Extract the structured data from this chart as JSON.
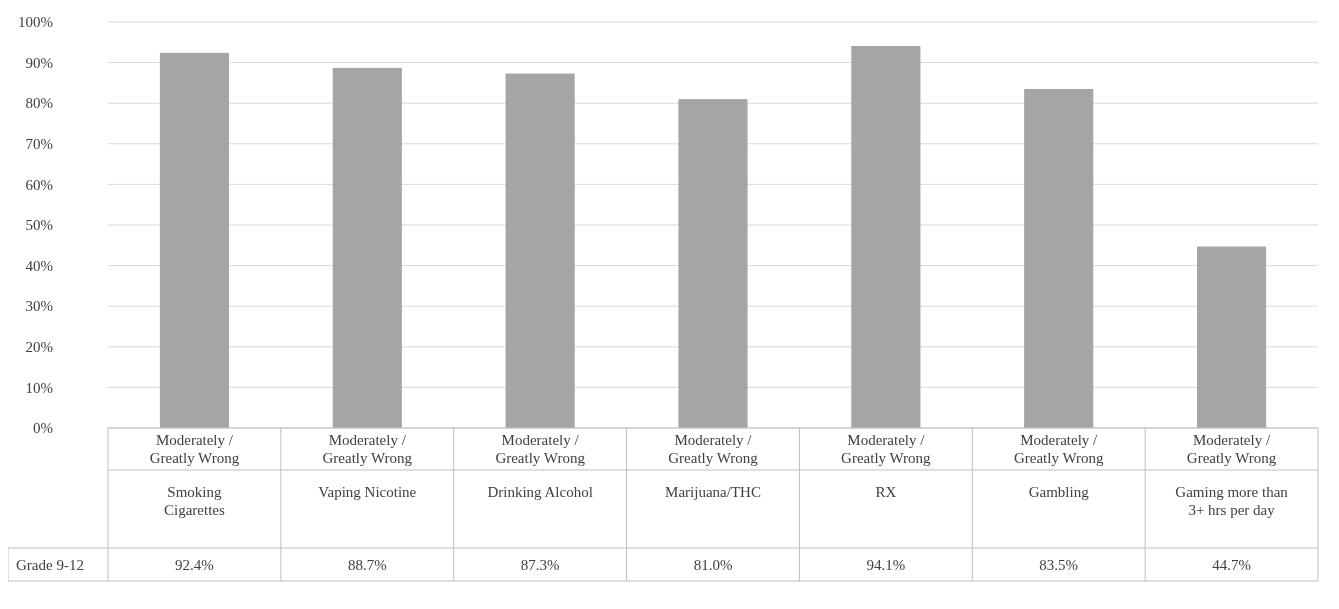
{
  "chart_data": {
    "type": "bar",
    "categories": [
      "Moderately / Greatly Wrong\nSmoking Cigarettes",
      "Moderately / Greatly Wrong\nVaping Nicotine",
      "Moderately / Greatly Wrong\nDrinking Alcohol",
      "Moderately / Greatly Wrong\nMarijuana/THC",
      "Moderately / Greatly Wrong\nRX",
      "Moderately / Greatly Wrong\nGambling",
      "Moderately / Greatly Wrong\nGaming more than 3+ hrs per day"
    ],
    "series": [
      {
        "name": "Grade 9-12",
        "color": "#a5a5a5",
        "values": [
          92.4,
          88.7,
          87.3,
          81.0,
          94.1,
          83.5,
          44.7
        ],
        "value_labels": [
          "92.4%",
          "88.7%",
          "87.3%",
          "81.0%",
          "94.1%",
          "83.5%",
          "44.7%"
        ]
      }
    ],
    "ylim": [
      0,
      100
    ],
    "yticks": [
      {
        "value": 0,
        "label": "0%"
      },
      {
        "value": 10,
        "label": "10%"
      },
      {
        "value": 20,
        "label": "20%"
      },
      {
        "value": 30,
        "label": "30%"
      },
      {
        "value": 40,
        "label": "40%"
      },
      {
        "value": 50,
        "label": "50%"
      },
      {
        "value": 60,
        "label": "60%"
      },
      {
        "value": 70,
        "label": "70%"
      },
      {
        "value": 80,
        "label": "80%"
      },
      {
        "value": 90,
        "label": "90%"
      },
      {
        "value": 100,
        "label": "100%"
      }
    ],
    "grid": "y"
  }
}
